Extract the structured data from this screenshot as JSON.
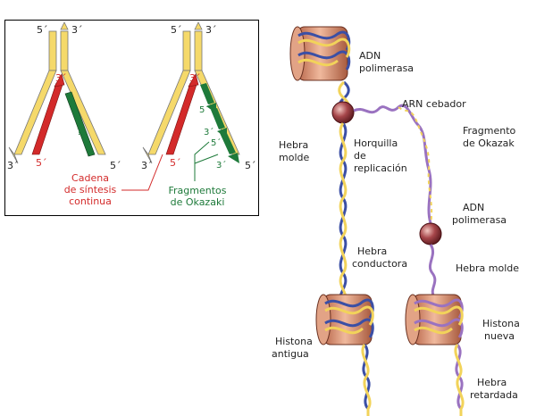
{
  "left": {
    "left_fork": {
      "top_left": "5´",
      "top_right": "3´",
      "bottom_left": "3´",
      "bottom_right": "5´",
      "red_top": "3´",
      "red_bottom": "5´",
      "question": "?"
    },
    "right_fork": {
      "top_left": "5´",
      "top_right": "3´",
      "bottom_left": "3´",
      "bottom_right": "5´",
      "red_top": "3´",
      "red_bottom": "5´",
      "frag_labels": [
        "5´",
        "3´",
        "5´",
        "3´"
      ]
    },
    "cadena": [
      "Cadena",
      "de síntesis",
      "continua"
    ],
    "fragmentos": [
      "Fragmentos",
      "de Okazaki"
    ]
  },
  "right": {
    "adn_pol_1": [
      "ADN",
      "polimerasa"
    ],
    "arn_cebador": "ARN cebador",
    "fragmento": [
      "Fragmento",
      "de Okazak"
    ],
    "hebra_molde_1": [
      "Hebra",
      "molde"
    ],
    "horquilla": [
      "Horquilla",
      "de",
      "replicación"
    ],
    "adn_pol_2": [
      "ADN",
      "polimerasa"
    ],
    "hebra_conductora": [
      "Hebra",
      "conductora"
    ],
    "hebra_molde_2": "Hebra molde",
    "histona_antigua": [
      "Histona",
      "antigua"
    ],
    "histona_nueva": [
      "Histona",
      "nueva"
    ],
    "hebra_retardada": [
      "Hebra",
      "retardada"
    ]
  },
  "colors": {
    "yellow": "#f2d35a",
    "red": "#d32a2a",
    "green": "#1e7a3a",
    "blue": "#3b4fa5",
    "purple": "#9a72c0",
    "nucleosome": "#d8957a"
  }
}
